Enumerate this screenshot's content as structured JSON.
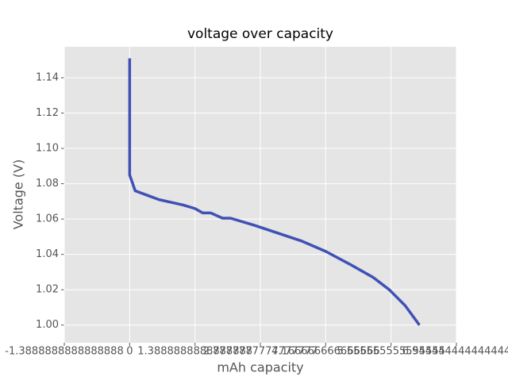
{
  "chart_data": {
    "type": "line",
    "title": "voltage over capacity",
    "x_label": "mAh capacity",
    "y_label": "Voltage (V)",
    "x": [
      0,
      0,
      0.118,
      0.371,
      0.624,
      1.131,
      1.384,
      1.553,
      1.721,
      1.974,
      2.143,
      2.65,
      3.156,
      3.662,
      4.168,
      4.675,
      5.181,
      5.519,
      5.856,
      6.159
    ],
    "values": [
      1.151,
      1.085,
      1.076,
      1.0735,
      1.071,
      1.068,
      1.066,
      1.0635,
      1.0635,
      1.0605,
      1.0605,
      1.0565,
      1.052,
      1.0475,
      1.0417,
      1.0345,
      1.0269,
      1.02,
      1.011,
      1.0
    ],
    "color": "#3f51b5",
    "xlim": [
      -1.3888888888888888,
      6.944444444444445
    ],
    "xticks": [
      -1.3888888888888888,
      0.0,
      1.3888888888888888,
      2.7777777777777777,
      4.166666666666666,
      5.555555555555555,
      6.944444444444444
    ],
    "ylim": [
      0.99,
      1.1575
    ],
    "yticks": [
      {
        "value": 1.0,
        "label": "1.00"
      },
      {
        "value": 1.02,
        "label": "1.02"
      },
      {
        "value": 1.04,
        "label": "1.04"
      },
      {
        "value": 1.06,
        "label": "1.06"
      },
      {
        "value": 1.08,
        "label": "1.08"
      },
      {
        "value": 1.1,
        "label": "1.10"
      },
      {
        "value": 1.12,
        "label": "1.12"
      },
      {
        "value": 1.14,
        "label": "1.14"
      }
    ],
    "grid": true
  }
}
